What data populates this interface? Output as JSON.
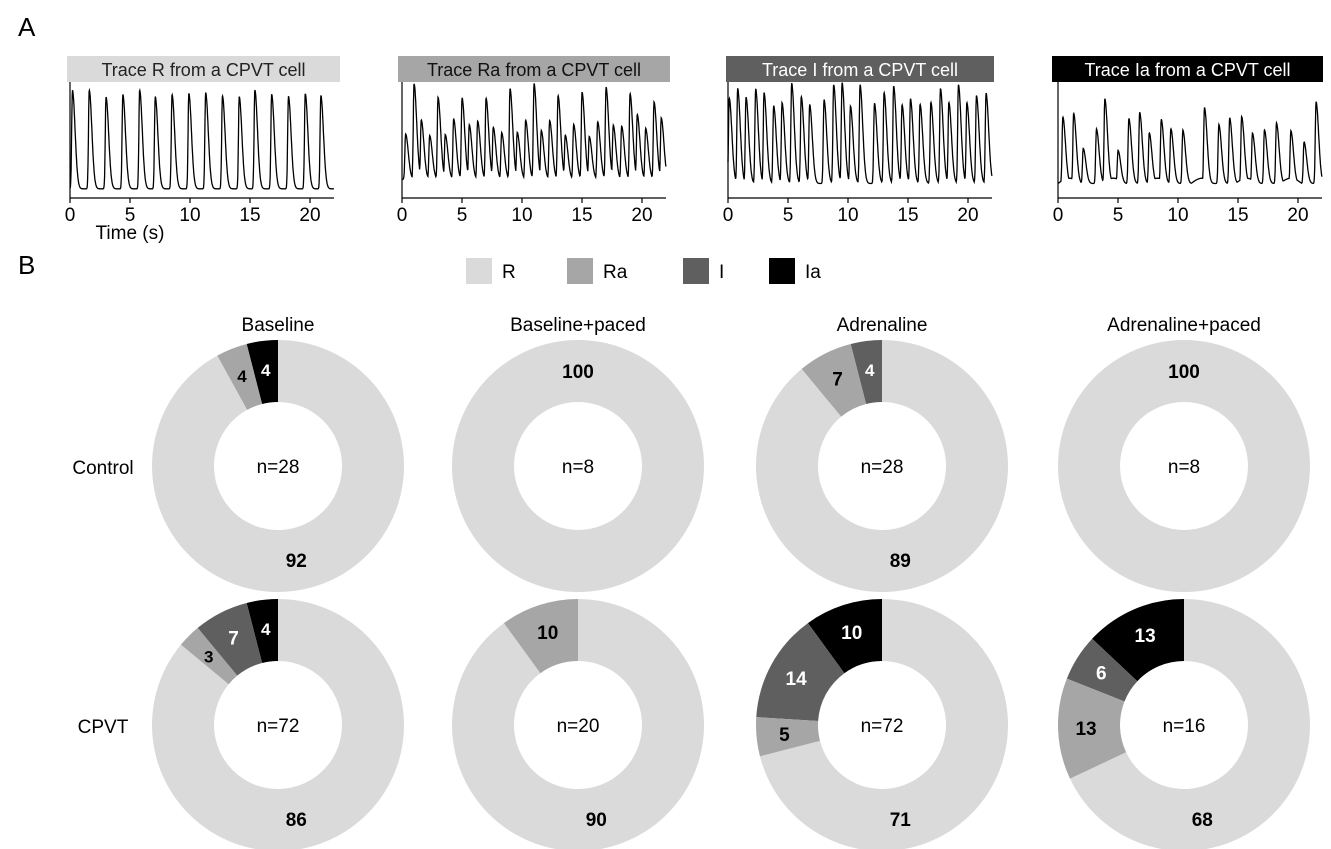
{
  "panels": {
    "a": "A",
    "b": "B"
  },
  "colors": {
    "R": "#dadada",
    "Ra": "#a6a6a6",
    "I": "#5f5f5f",
    "Ia": "#000000"
  },
  "legend": [
    {
      "key": "R",
      "label": "R"
    },
    {
      "key": "Ra",
      "label": "Ra"
    },
    {
      "key": "I",
      "label": "I"
    },
    {
      "key": "Ia",
      "label": "Ia"
    }
  ],
  "rows": [
    "Control",
    "CPVT"
  ],
  "columns": [
    "Baseline",
    "Baseline+paced",
    "Adrenaline",
    "Adrenaline+paced"
  ],
  "chart_data": [
    {
      "type": "line",
      "title": "Trace R from a CPVT cell",
      "title_style": "R",
      "xlabel": "Time (s)",
      "xticks": [
        0,
        5,
        10,
        15,
        20
      ],
      "xlim": [
        0,
        22
      ],
      "pattern": "regular",
      "peaks_s": [
        0.2,
        1.6,
        3.0,
        4.4,
        5.8,
        7.1,
        8.5,
        9.9,
        11.3,
        12.7,
        14.1,
        15.4,
        16.8,
        18.2,
        19.6,
        20.9
      ]
    },
    {
      "type": "line",
      "title": "Trace Ra from a CPVT cell",
      "title_style": "Ra",
      "xlabel": "",
      "xticks": [
        0,
        5,
        10,
        15,
        20
      ],
      "xlim": [
        0,
        22
      ],
      "pattern": "regular-arrhythmic",
      "peaks_s": [
        0.3,
        1.0,
        1.6,
        2.3,
        3.0,
        3.6,
        4.3,
        5.0,
        5.6,
        6.3,
        7.0,
        7.6,
        8.3,
        9.0,
        9.6,
        10.3,
        11.0,
        11.6,
        12.3,
        13.0,
        13.6,
        14.3,
        15.0,
        15.6,
        16.3,
        17.0,
        17.6,
        18.3,
        19.0,
        19.6,
        20.3,
        21.0,
        21.6
      ]
    },
    {
      "type": "line",
      "title": "Trace I from a CPVT cell",
      "title_style": "I",
      "xlabel": "",
      "xticks": [
        0,
        5,
        10,
        15,
        20
      ],
      "xlim": [
        0,
        22
      ],
      "pattern": "irregular",
      "peaks_s": [
        0.1,
        0.8,
        1.5,
        2.3,
        3.0,
        3.8,
        4.5,
        5.3,
        6.1,
        6.8,
        8.0,
        8.8,
        9.5,
        10.2,
        11.0,
        12.2,
        13.0,
        13.8,
        14.5,
        15.2,
        16.0,
        16.9,
        17.7,
        18.4,
        19.2,
        19.9,
        20.7,
        21.5
      ]
    },
    {
      "type": "line",
      "title": "Trace Ia from a CPVT cell",
      "title_style": "Ia",
      "xlabel": "",
      "xticks": [
        0,
        5,
        10,
        15,
        20
      ],
      "xlim": [
        0,
        22
      ],
      "pattern": "irregular-arrhythmic",
      "peaks_s": [
        0.4,
        1.3,
        2.1,
        3.2,
        3.9,
        5.0,
        5.9,
        6.8,
        7.6,
        8.6,
        9.4,
        10.4,
        12.2,
        13.4,
        14.3,
        15.3,
        16.2,
        17.2,
        18.2,
        19.4,
        20.5,
        21.5
      ]
    },
    {
      "type": "pie",
      "title": "Baseline",
      "row": "Control",
      "n_label": "n=28",
      "slices": [
        {
          "cat": "R",
          "value": 92
        },
        {
          "cat": "Ra",
          "value": 4
        },
        {
          "cat": "I",
          "value": 0
        },
        {
          "cat": "Ia",
          "value": 4
        }
      ]
    },
    {
      "type": "pie",
      "title": "Baseline+paced",
      "row": "Control",
      "n_label": "n=8",
      "slices": [
        {
          "cat": "R",
          "value": 100
        },
        {
          "cat": "Ra",
          "value": 0
        },
        {
          "cat": "I",
          "value": 0
        },
        {
          "cat": "Ia",
          "value": 0
        }
      ]
    },
    {
      "type": "pie",
      "title": "Adrenaline",
      "row": "Control",
      "n_label": "n=28",
      "slices": [
        {
          "cat": "R",
          "value": 89
        },
        {
          "cat": "Ra",
          "value": 7
        },
        {
          "cat": "I",
          "value": 4
        },
        {
          "cat": "Ia",
          "value": 0
        }
      ]
    },
    {
      "type": "pie",
      "title": "Adrenaline+paced",
      "row": "Control",
      "n_label": "n=8",
      "slices": [
        {
          "cat": "R",
          "value": 100
        },
        {
          "cat": "Ra",
          "value": 0
        },
        {
          "cat": "I",
          "value": 0
        },
        {
          "cat": "Ia",
          "value": 0
        }
      ]
    },
    {
      "type": "pie",
      "title": "Baseline",
      "row": "CPVT",
      "n_label": "n=72",
      "slices": [
        {
          "cat": "R",
          "value": 86
        },
        {
          "cat": "Ra",
          "value": 3
        },
        {
          "cat": "I",
          "value": 7
        },
        {
          "cat": "Ia",
          "value": 4
        }
      ]
    },
    {
      "type": "pie",
      "title": "Baseline+paced",
      "row": "CPVT",
      "n_label": "n=20",
      "slices": [
        {
          "cat": "R",
          "value": 90
        },
        {
          "cat": "Ra",
          "value": 10
        },
        {
          "cat": "I",
          "value": 0
        },
        {
          "cat": "Ia",
          "value": 0
        }
      ]
    },
    {
      "type": "pie",
      "title": "Adrenaline",
      "row": "CPVT",
      "n_label": "n=72",
      "slices": [
        {
          "cat": "R",
          "value": 71
        },
        {
          "cat": "Ra",
          "value": 5
        },
        {
          "cat": "I",
          "value": 14
        },
        {
          "cat": "Ia",
          "value": 10
        }
      ]
    },
    {
      "type": "pie",
      "title": "Adrenaline+paced",
      "row": "CPVT",
      "n_label": "n=16",
      "slices": [
        {
          "cat": "R",
          "value": 68
        },
        {
          "cat": "Ra",
          "value": 13
        },
        {
          "cat": "I",
          "value": 6
        },
        {
          "cat": "Ia",
          "value": 13
        }
      ]
    }
  ]
}
